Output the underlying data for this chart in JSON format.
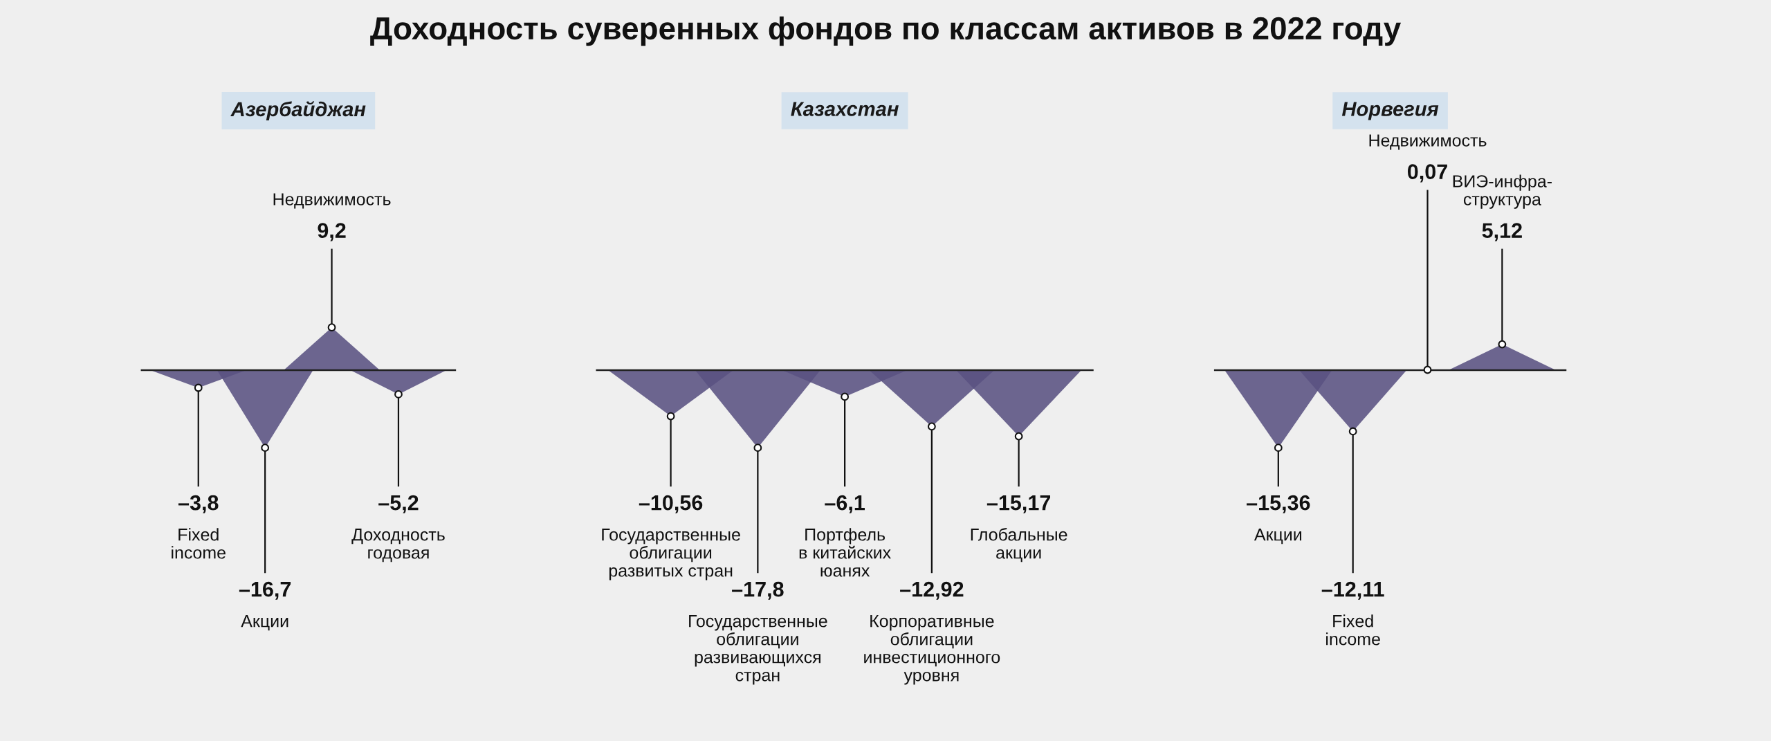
{
  "chart_data": [
    {
      "type": "other",
      "title": "Азербайджан",
      "annotations": [
        "Доходность суверенных фондов по классам активов в 2022 году"
      ],
      "categories": [
        "Fixed\nincome",
        "Акции",
        "Недвижимость",
        "Доходность\nгодовая"
      ],
      "values": [
        -3.8,
        -16.7,
        9.2,
        -5.2
      ],
      "value_labels": [
        "–3,8",
        "–16,7",
        "9,2",
        "–5,2"
      ],
      "color": "#5a5282"
    },
    {
      "type": "other",
      "title": "Казахстан",
      "categories": [
        "Государственные\nоблигации\nразвитых стран",
        "Государственные\nоблигации\nразвивающихся\nстран",
        "Портфель\nв китайских\nюанях",
        "Корпоративные\nоблигации\nинвестиционного\nуровня",
        "Глобальные\nакции"
      ],
      "values": [
        -10.56,
        -17.8,
        -6.1,
        -12.92,
        -15.17
      ],
      "value_labels": [
        "–10,56",
        "–17,8",
        "–6,1",
        "–12,92",
        "–15,17"
      ],
      "color": "#5a5282"
    },
    {
      "type": "other",
      "title": "Норвегия",
      "categories": [
        "Акции",
        "Fixed\nincome",
        "Недвижимость",
        "ВИЭ-инфра-\nструктура"
      ],
      "values": [
        -15.36,
        -12.11,
        0.07,
        5.12
      ],
      "value_labels": [
        "–15,36",
        "–12,11",
        "0,07",
        "5,12"
      ],
      "color": "#5a5282"
    }
  ]
}
